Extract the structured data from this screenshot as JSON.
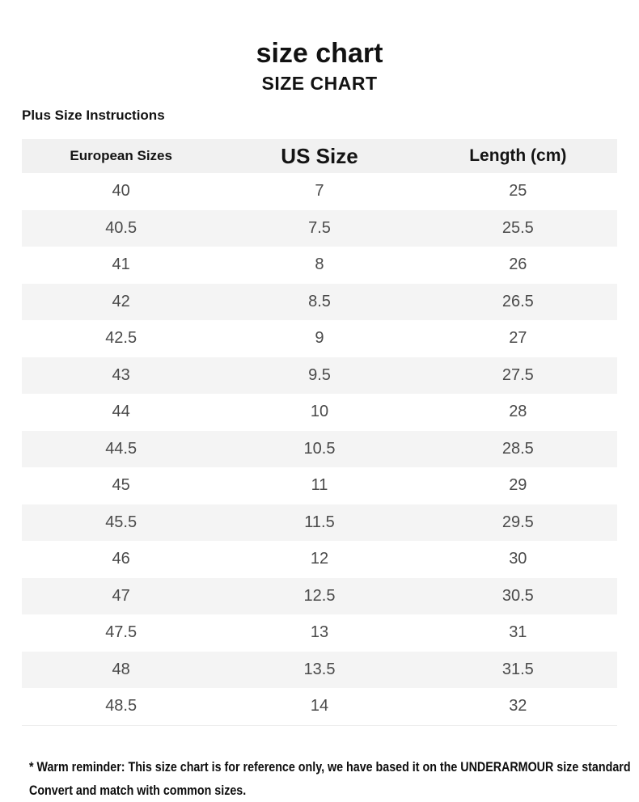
{
  "header": {
    "title": "size chart",
    "subtitle": "SIZE CHART",
    "note": "Plus Size Instructions"
  },
  "chart_data": {
    "type": "table",
    "title": "size chart",
    "subtitle": "SIZE CHART",
    "columns": [
      "European Sizes",
      "US Size",
      "Length (cm)"
    ],
    "rows": [
      [
        "40",
        "7",
        "25"
      ],
      [
        "40.5",
        "7.5",
        "25.5"
      ],
      [
        "41",
        "8",
        "26"
      ],
      [
        "42",
        "8.5",
        "26.5"
      ],
      [
        "42.5",
        "9",
        "27"
      ],
      [
        "43",
        "9.5",
        "27.5"
      ],
      [
        "44",
        "10",
        "28"
      ],
      [
        "44.5",
        "10.5",
        "28.5"
      ],
      [
        "45",
        "11",
        "29"
      ],
      [
        "45.5",
        "11.5",
        "29.5"
      ],
      [
        "46",
        "12",
        "30"
      ],
      [
        "47",
        "12.5",
        "30.5"
      ],
      [
        "47.5",
        "13",
        "31"
      ],
      [
        "48",
        "13.5",
        "31.5"
      ],
      [
        "48.5",
        "14",
        "32"
      ]
    ],
    "layout_hints": {
      "striped_rows": true,
      "first_data_row_background": "white",
      "header_row_background": "gray"
    }
  },
  "footer": {
    "line1": "* Warm reminder: This size chart is for reference only, we have based it on the UNDERARMOUR size standard",
    "line2": "Convert and match with common sizes."
  },
  "colors": {
    "page_background": "#ffffff",
    "header_row_bg": "#f1f1f1",
    "alt_row_bg": "#f4f4f4",
    "heading_text": "#121212",
    "data_text": "#4a4a4a"
  }
}
